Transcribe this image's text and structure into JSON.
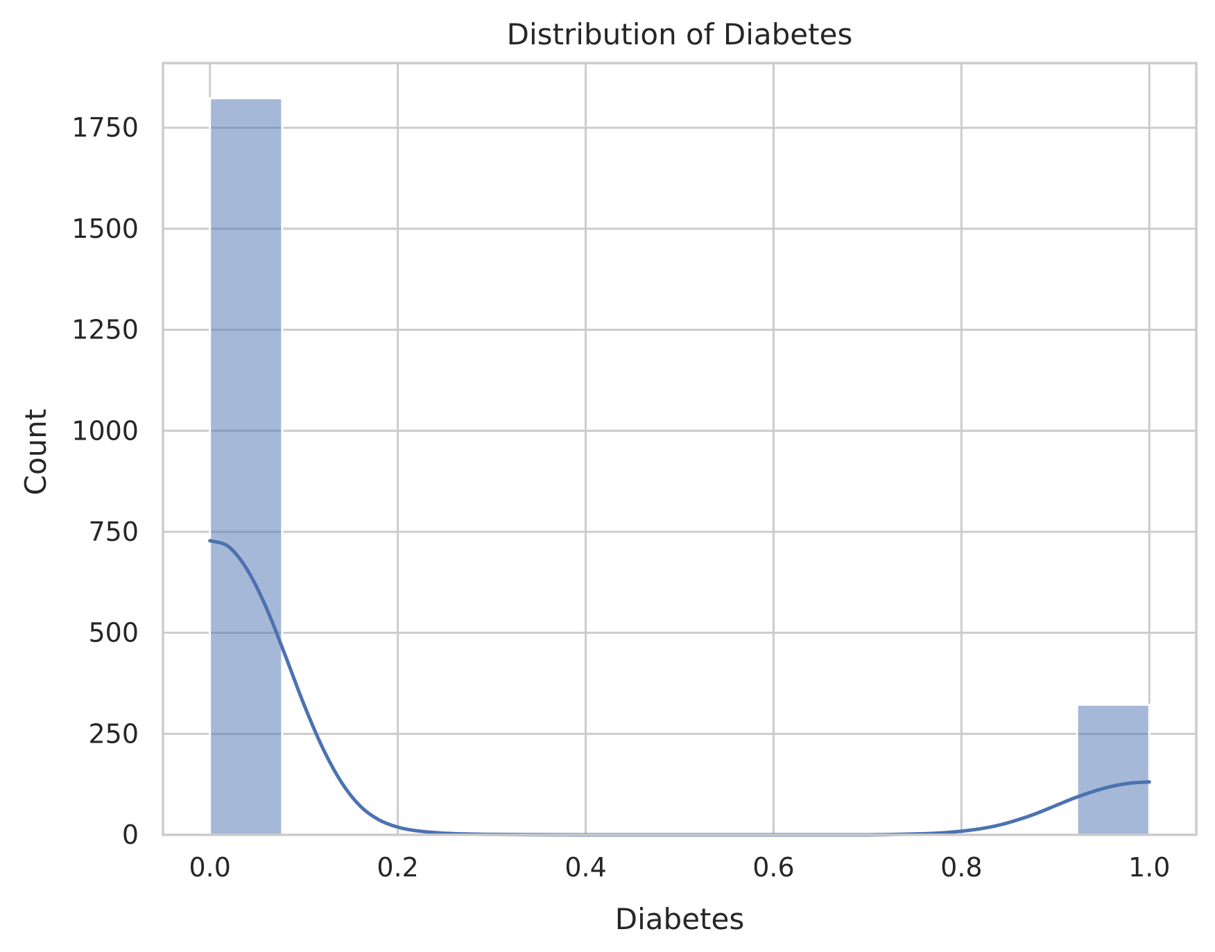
{
  "chart_data": {
    "type": "bar",
    "subtype": "histogram_with_kde",
    "title": "Distribution of Diabetes",
    "xlabel": "Diabetes",
    "ylabel": "Count",
    "xlim": [
      -0.05,
      1.05
    ],
    "ylim": [
      0,
      1910
    ],
    "xticks": [
      0.0,
      0.2,
      0.4,
      0.6,
      0.8,
      1.0
    ],
    "xtick_labels": [
      "0.0",
      "0.2",
      "0.4",
      "0.6",
      "0.8",
      "1.0"
    ],
    "yticks": [
      0,
      250,
      500,
      750,
      1000,
      1250,
      1500,
      1750
    ],
    "ytick_labels": [
      "0",
      "250",
      "500",
      "750",
      "1000",
      "1250",
      "1500",
      "1750"
    ],
    "grid": true,
    "bars": [
      {
        "x0": 0.0,
        "x1": 0.0769,
        "count": 1823
      },
      {
        "x0": 0.9231,
        "x1": 1.0,
        "count": 322
      }
    ],
    "kde": {
      "x": [
        0.0,
        0.02,
        0.04,
        0.06,
        0.08,
        0.1,
        0.12,
        0.14,
        0.16,
        0.18,
        0.2,
        0.22,
        0.25,
        0.3,
        0.4,
        0.5,
        0.6,
        0.7,
        0.75,
        0.78,
        0.8,
        0.82,
        0.84,
        0.86,
        0.88,
        0.9,
        0.92,
        0.94,
        0.96,
        0.98,
        1.0
      ],
      "y": [
        728,
        713,
        655,
        562,
        445,
        323,
        215,
        130,
        71,
        37,
        19,
        10,
        4,
        1,
        0,
        0,
        0,
        0,
        2,
        5,
        9,
        15,
        24,
        37,
        53,
        72,
        91,
        107,
        120,
        128,
        131
      ]
    },
    "colors": {
      "bar": "#4c72b0",
      "kde": "#4c72b0",
      "grid": "#cccccc",
      "text": "#262626"
    }
  }
}
